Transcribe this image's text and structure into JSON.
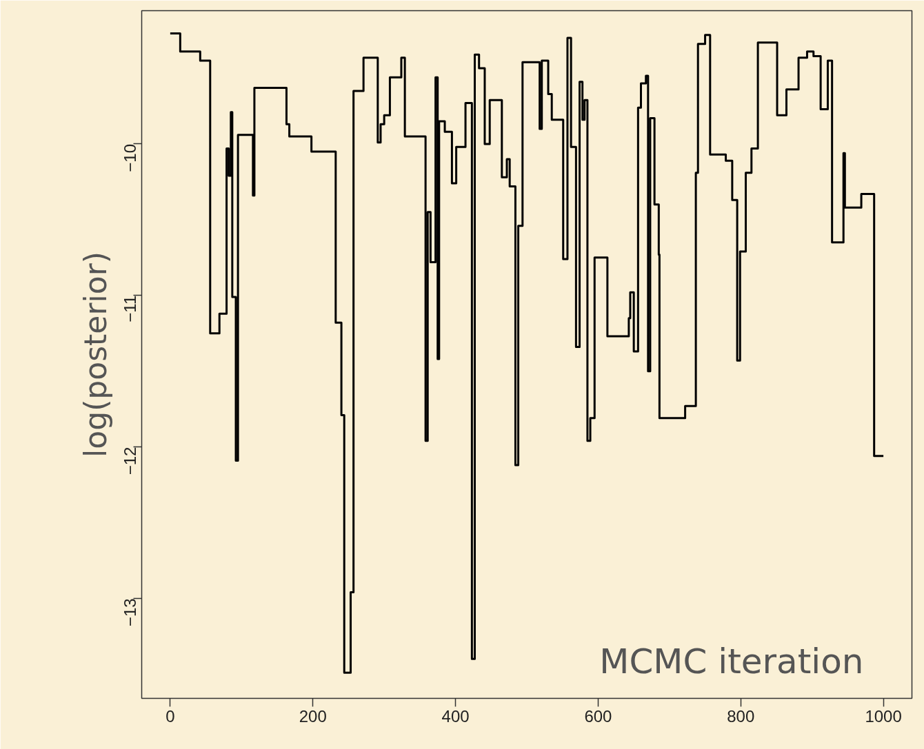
{
  "chart_data": {
    "type": "step",
    "xlabel": "MCMC iteration",
    "ylabel": "log(posterior)",
    "x": [
      0,
      14,
      42,
      56,
      69,
      79,
      82,
      85,
      87,
      92,
      95,
      116,
      118,
      163,
      167,
      198,
      232,
      240,
      244,
      253,
      257,
      271,
      291,
      295,
      300,
      308,
      324,
      329,
      358,
      361,
      365,
      372,
      375,
      377,
      385,
      395,
      401,
      414,
      423,
      427,
      433,
      441,
      448,
      465,
      472,
      476,
      484,
      488,
      494,
      518,
      521,
      530,
      535,
      551,
      557,
      562,
      569,
      574,
      578,
      581,
      585,
      589,
      595,
      613,
      643,
      645,
      650,
      656,
      660,
      667,
      670,
      673,
      679,
      685,
      686,
      722,
      737,
      740,
      750,
      757,
      779,
      788,
      795,
      799,
      807,
      815,
      824,
      851,
      864,
      881,
      893,
      902,
      912,
      922,
      928,
      944,
      946,
      969,
      987,
      1000
    ],
    "values": [
      -9.27,
      -9.39,
      -9.45,
      -11.25,
      -11.12,
      -10.03,
      -10.21,
      -9.79,
      -11.01,
      -12.09,
      -9.94,
      -10.34,
      -9.63,
      -9.87,
      -9.95,
      -10.05,
      -11.18,
      -11.79,
      -13.49,
      -12.96,
      -9.65,
      -9.43,
      -9.99,
      -9.87,
      -9.81,
      -9.56,
      -9.43,
      -9.95,
      -11.96,
      -10.45,
      -10.78,
      -9.56,
      -11.42,
      -9.85,
      -9.92,
      -10.26,
      -10.02,
      -9.73,
      -13.4,
      -9.41,
      -9.5,
      -10.0,
      -9.71,
      -10.22,
      -10.1,
      -10.28,
      -12.12,
      -10.54,
      -9.46,
      -9.9,
      -9.45,
      -9.67,
      -9.84,
      -10.76,
      -9.3,
      -10.02,
      -11.34,
      -9.59,
      -9.84,
      -9.71,
      -11.96,
      -11.81,
      -10.75,
      -11.27,
      -11.15,
      -10.98,
      -11.37,
      -9.76,
      -9.6,
      -9.55,
      -11.5,
      -9.83,
      -10.4,
      -10.73,
      -11.81,
      -11.73,
      -10.19,
      -9.34,
      -9.28,
      -10.07,
      -10.11,
      -10.37,
      -11.43,
      -10.71,
      -10.19,
      -10.03,
      -9.33,
      -9.81,
      -9.64,
      -9.43,
      -9.39,
      -9.42,
      -9.77,
      -9.45,
      -10.65,
      -10.06,
      -10.42,
      -10.33,
      -12.06,
      -12.06
    ],
    "color": "#000000",
    "xlim": [
      -40,
      1040
    ],
    "ylim": [
      -13.66,
      -9.12
    ],
    "xticks": [
      0,
      200,
      400,
      600,
      800,
      1000
    ],
    "yticks": [
      -13,
      -12,
      -11,
      -10
    ],
    "grid": false
  }
}
